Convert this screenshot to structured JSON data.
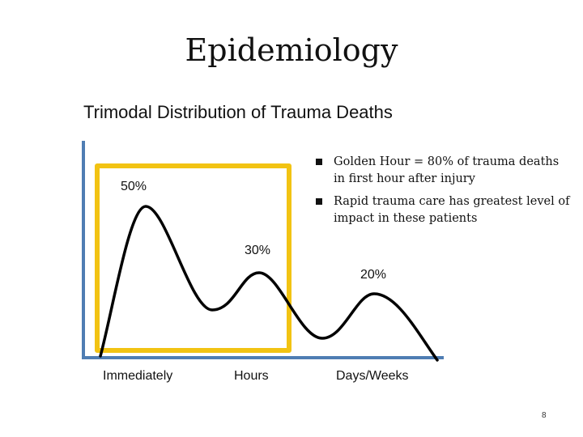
{
  "slide": {
    "title": "Epidemiology",
    "subtitle": "Trimodal Distribution of Trauma Deaths",
    "page_number": "8"
  },
  "bullets": [
    "Golden Hour = 80% of trauma deaths in first hour after injury",
    "Rapid trauma care has greatest level of impact in these patients"
  ],
  "peaks": [
    {
      "label": "50%"
    },
    {
      "label": "30%"
    },
    {
      "label": "20%"
    }
  ],
  "x_labels": [
    "Immediately",
    "Hours",
    "Days/Weeks"
  ],
  "colors": {
    "axis": "#4f7db3",
    "highlight_box": "#f2c313",
    "curve": "#000000"
  }
}
